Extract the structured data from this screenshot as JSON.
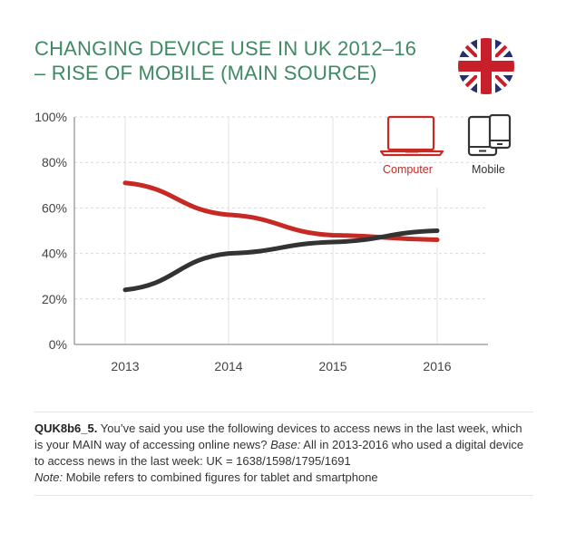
{
  "title": {
    "line1": "CHANGING DEVICE USE IN UK 2012–16",
    "line2": "– RISE OF MOBILE (MAIN SOURCE)"
  },
  "flag_icon": "uk-flag-icon",
  "colors": {
    "title": "#3f8a63",
    "computer": "#c62a24",
    "mobile": "#333333",
    "grid": "#d9d9d9",
    "axis": "#777777"
  },
  "legend": {
    "items": [
      {
        "label": "Computer",
        "icon": "laptop-icon",
        "color": "#c62a24"
      },
      {
        "label": "Mobile",
        "icon": "mobile-devices-icon",
        "color": "#333333"
      }
    ]
  },
  "chart_data": {
    "type": "line",
    "title": "CHANGING DEVICE USE IN UK 2012–16 – RISE OF MOBILE (MAIN SOURCE)",
    "xlabel": "",
    "ylabel": "",
    "x": [
      "2013",
      "2014",
      "2015",
      "2016"
    ],
    "yticks": [
      "0%",
      "20%",
      "40%",
      "60%",
      "80%",
      "100%"
    ],
    "ylim": [
      0,
      100
    ],
    "grid": true,
    "legend_position": "top-right",
    "series": [
      {
        "name": "Computer",
        "color": "#c62a24",
        "values": [
          71,
          57,
          48,
          46
        ]
      },
      {
        "name": "Mobile",
        "color": "#333333",
        "values": [
          24,
          40,
          45,
          50
        ]
      }
    ]
  },
  "footer": {
    "question_id": "QUK8b6_5.",
    "question_text": " You’ve said you use the following devices to access news in the last week, which is your MAIN way of accessing online news? ",
    "base_label": "Base:",
    "base_text": " All in 2013-2016 who used a digital device to access news in the last week: UK = 1638/1598/1795/1691",
    "note_label": "Note:",
    "note_text": " Mobile refers to combined figures for tablet and smartphone"
  }
}
